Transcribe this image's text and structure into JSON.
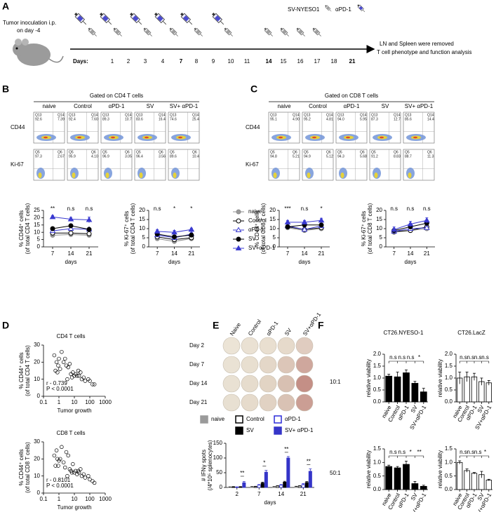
{
  "figure": {
    "panel_labels": [
      "A",
      "B",
      "C",
      "D",
      "E",
      "F"
    ],
    "panel_a": {
      "inoculation": "Tumor inoculation  i.p.",
      "inoculation_day": "on day -4",
      "legend": [
        "SV-NYESO1",
        "αPD-1"
      ],
      "days_label": "Days:",
      "days": [
        1,
        2,
        3,
        4,
        7,
        8,
        9,
        10,
        11,
        14,
        15,
        16,
        17,
        18,
        21
      ],
      "day_colors": [
        "#000",
        "#000",
        "#000",
        "#000",
        "#d4141b",
        "#000",
        "#000",
        "#000",
        "#000",
        "#d4141b",
        "#000",
        "#000",
        "#000",
        "#000",
        "#d4141b"
      ],
      "end_text": [
        "LN and Spleen  were removed",
        "T cell phenotype  and  function analysis"
      ]
    },
    "panel_b": {
      "gate": "Gated on CD4 T cells",
      "groups": [
        "naive",
        "Control",
        "αPD-1",
        "SV",
        "SV+ αPD-1"
      ],
      "rows": [
        "CD44",
        "Ki-67"
      ],
      "quadrants": [
        [
          [
            "Q13",
            "92.6",
            "Q14",
            "7.39"
          ],
          [
            "Q13",
            "92.4",
            "Q14",
            "7.60"
          ],
          [
            "Q13",
            "89.3",
            "Q14",
            "10.7"
          ],
          [
            "Q13",
            "83.6",
            "Q14",
            "16.4"
          ],
          [
            "Q13",
            "74.6",
            "Q14",
            "25.4"
          ]
        ],
        [
          [
            "Q5",
            "97.3",
            "Q6",
            "2.67"
          ],
          [
            "Q5",
            "95.9",
            "Q6",
            "4.10"
          ],
          [
            "Q5",
            "96.9",
            "Q6",
            "3.05"
          ],
          [
            "Q5",
            "96.4",
            "Q6",
            "3.56"
          ],
          [
            "Q5",
            "89.6",
            "Q6",
            "10.4"
          ]
        ]
      ]
    },
    "panel_c": {
      "gate": "Gated on CD8 T cells",
      "groups": [
        "naive",
        "Control",
        "αPD-1",
        "SV",
        "SV+ αPD-1"
      ],
      "rows": [
        "CD44",
        "Ki-67"
      ],
      "quadrants": [
        [
          [
            "Q13",
            "95.1",
            "Q14",
            "4.90"
          ],
          [
            "Q13",
            "95.2",
            "Q14",
            "4.81"
          ],
          [
            "Q13",
            "94.0",
            "Q14",
            "5.95"
          ],
          [
            "Q13",
            "87.3",
            "Q14",
            "12.7"
          ],
          [
            "Q13",
            "85.6",
            "Q14",
            "14.4"
          ]
        ],
        [
          [
            "Q5",
            "94.8",
            "Q6",
            "5.21"
          ],
          [
            "Q5",
            "94.9",
            "Q6",
            "5.12"
          ],
          [
            "Q5",
            "94.3",
            "Q6",
            "5.68"
          ],
          [
            "Q5",
            "91.2",
            "Q6",
            "8.83"
          ],
          [
            "Q5",
            "88.7",
            "Q6",
            "11.3"
          ]
        ]
      ]
    },
    "panel_e": {
      "columns": [
        "Naive",
        "Control",
        "αPD-1",
        "SV",
        "SV+αPD-1"
      ],
      "rows": [
        "Day 2",
        "Day 7",
        "Day 14",
        "Day 21"
      ]
    },
    "panel_f": {
      "ratios": [
        "10:1",
        "50:1"
      ]
    }
  },
  "chart_data": [
    {
      "type": "line",
      "categories": [
        "7",
        "14",
        "21"
      ],
      "xlabel": "days",
      "ylabel": [
        "% CD44⁺ cells",
        "(of total CD4 T cells)"
      ],
      "ylim": [
        0,
        25
      ],
      "yticks": [
        0,
        5,
        10,
        15,
        20,
        25
      ],
      "annotations": [
        "**",
        "n.s",
        "n.s"
      ],
      "series": [
        {
          "name": "naive",
          "color": "#8c8c8c",
          "fill": "#9a9a9a",
          "marker": "circle",
          "values": [
            8,
            8.5,
            8
          ],
          "errors": [
            0.8,
            0.8,
            0.8
          ]
        },
        {
          "name": "Control",
          "color": "#000000",
          "fill": "#ffffff",
          "marker": "circle",
          "values": [
            9.5,
            9.5,
            9
          ],
          "errors": [
            0.8,
            0.9,
            0.8
          ]
        },
        {
          "name": "αPD-1",
          "color": "#3a3ad0",
          "fill": "#ffffff",
          "marker": "triangle",
          "values": [
            11,
            12.5,
            12
          ],
          "errors": [
            1,
            1,
            1
          ]
        },
        {
          "name": "SV",
          "color": "#000000",
          "fill": "#000000",
          "marker": "circle",
          "values": [
            12.5,
            14.5,
            12
          ],
          "errors": [
            1,
            1,
            1
          ]
        },
        {
          "name": "SV+αPD-1",
          "color": "#3a3ad0",
          "fill": "#3a3ad0",
          "marker": "triangle",
          "values": [
            20.5,
            19,
            18.5
          ],
          "errors": [
            1,
            1.2,
            2
          ]
        }
      ]
    },
    {
      "type": "line",
      "categories": [
        "7",
        "14",
        "21"
      ],
      "xlabel": "days",
      "ylabel": [
        "% Ki-67⁺ cells",
        "(of total CD4 T cells)"
      ],
      "ylim": [
        0,
        20
      ],
      "yticks": [
        0,
        5,
        10,
        15,
        20
      ],
      "annotations": [
        "n.s",
        "*",
        "*"
      ],
      "series": [
        {
          "color": "#8c8c8c",
          "fill": "#9a9a9a",
          "marker": "circle",
          "values": [
            4.5,
            3,
            4.5
          ],
          "errors": [
            1,
            1,
            0.8
          ]
        },
        {
          "color": "#000000",
          "fill": "#ffffff",
          "marker": "circle",
          "values": [
            5.5,
            4,
            5
          ],
          "errors": [
            1,
            1,
            0.8
          ]
        },
        {
          "color": "#3a3ad0",
          "fill": "#ffffff",
          "marker": "triangle",
          "values": [
            6.5,
            5,
            7
          ],
          "errors": [
            1,
            1,
            1
          ]
        },
        {
          "color": "#000000",
          "fill": "#000000",
          "marker": "circle",
          "values": [
            7,
            5.5,
            6.5
          ],
          "errors": [
            1,
            1,
            1
          ]
        },
        {
          "color": "#3a3ad0",
          "fill": "#3a3ad0",
          "marker": "triangle",
          "values": [
            8.5,
            8,
            9.5
          ],
          "errors": [
            1,
            1,
            0.8
          ]
        }
      ]
    },
    {
      "type": "line",
      "categories": [
        "7",
        "14",
        "21"
      ],
      "xlabel": "days",
      "ylabel": [
        "% CD44⁺ cells",
        "(of total CD8 T cells)"
      ],
      "ylim": [
        0,
        20
      ],
      "yticks": [
        0,
        5,
        10,
        15,
        20
      ],
      "annotations": [
        "***",
        "n.s",
        "*"
      ],
      "series": [
        {
          "color": "#8c8c8c",
          "fill": "#9a9a9a",
          "marker": "circle",
          "values": [
            10.5,
            9,
            10
          ],
          "errors": [
            0.8,
            0.8,
            0.8
          ]
        },
        {
          "color": "#000000",
          "fill": "#ffffff",
          "marker": "circle",
          "values": [
            11,
            9.5,
            10.5
          ],
          "errors": [
            0.8,
            0.8,
            0.8
          ]
        },
        {
          "color": "#3a3ad0",
          "fill": "#ffffff",
          "marker": "triangle",
          "values": [
            11.5,
            9.5,
            11.5
          ],
          "errors": [
            1,
            0.8,
            1
          ]
        },
        {
          "color": "#000000",
          "fill": "#000000",
          "marker": "circle",
          "values": [
            11,
            12,
            12
          ],
          "errors": [
            1,
            1,
            1
          ]
        },
        {
          "color": "#3a3ad0",
          "fill": "#3a3ad0",
          "marker": "triangle",
          "values": [
            13.5,
            13.5,
            14.5
          ],
          "errors": [
            1,
            1,
            1.2
          ]
        }
      ]
    },
    {
      "type": "line",
      "categories": [
        "7",
        "14",
        "21"
      ],
      "xlabel": "days",
      "ylabel": [
        "% Ki-67⁺ cells",
        "(of total CD8 T cells)"
      ],
      "ylim": [
        0,
        20
      ],
      "yticks": [
        0,
        5,
        10,
        15,
        20
      ],
      "annotations": [
        "n.s",
        "n.s",
        "n.s"
      ],
      "series": [
        {
          "color": "#8c8c8c",
          "fill": "#9a9a9a",
          "marker": "circle",
          "values": [
            8,
            9,
            10
          ],
          "errors": [
            1,
            1,
            1
          ]
        },
        {
          "color": "#000000",
          "fill": "#ffffff",
          "marker": "circle",
          "values": [
            8.5,
            9,
            11
          ],
          "errors": [
            1,
            1,
            1
          ]
        },
        {
          "color": "#3a3ad0",
          "fill": "#ffffff",
          "marker": "triangle",
          "values": [
            8.5,
            10,
            10.5
          ],
          "errors": [
            1,
            1,
            1
          ]
        },
        {
          "color": "#000000",
          "fill": "#000000",
          "marker": "circle",
          "values": [
            9,
            11,
            13
          ],
          "errors": [
            1,
            1,
            1
          ]
        },
        {
          "color": "#3a3ad0",
          "fill": "#3a3ad0",
          "marker": "triangle",
          "values": [
            9.5,
            12.5,
            14.5
          ],
          "errors": [
            1.5,
            1.5,
            1.5
          ]
        }
      ]
    },
    {
      "type": "scatter",
      "title": "CD4  T cells",
      "xlabel": "Tumor growth",
      "ylabel": [
        "% CD44⁺ cells",
        "(of total CD4 T cells)"
      ],
      "xscale": "log",
      "xlim": [
        0.1,
        1000
      ],
      "xticks": [
        0.1,
        1,
        10,
        100,
        1000
      ],
      "ylim": [
        0,
        30
      ],
      "yticks": [
        0,
        10,
        20,
        30
      ],
      "annotations": [
        "r   - 0.739",
        "P   < 0.0001"
      ],
      "x": [
        0.5,
        0.7,
        1,
        0.6,
        0.8,
        1.5,
        2,
        3,
        2.5,
        4,
        5,
        6,
        8,
        10,
        12,
        15,
        20,
        25,
        30,
        40,
        50,
        80,
        100,
        150,
        200,
        0.9,
        1.2,
        3.5,
        7,
        18
      ],
      "y": [
        24,
        20,
        22,
        15,
        14,
        26,
        20,
        18,
        22,
        17,
        19,
        13,
        14,
        12,
        13,
        12,
        12,
        14,
        10,
        11,
        9,
        10,
        9,
        7,
        7,
        18,
        16,
        10,
        11,
        15
      ]
    },
    {
      "type": "scatter",
      "title": "CD8  T cells",
      "xlabel": "Tumor growth",
      "ylabel": [
        "% CD44⁺ cells",
        "(of total CD8 T cells)"
      ],
      "xscale": "log",
      "xlim": [
        0.1,
        1000
      ],
      "xticks": [
        0.1,
        1,
        10,
        100,
        1000
      ],
      "ylim": [
        0,
        30
      ],
      "yticks": [
        0,
        10,
        20,
        30
      ],
      "annotations": [
        "r   - 0.8101",
        "P   < 0.0001"
      ],
      "x": [
        0.5,
        0.7,
        1,
        0.6,
        0.8,
        1.5,
        2,
        3,
        2.5,
        4,
        5,
        6,
        8,
        10,
        12,
        15,
        20,
        25,
        30,
        40,
        50,
        80,
        100,
        150,
        200,
        0.9,
        1.2,
        3.5,
        7,
        18
      ],
      "y": [
        22,
        25,
        19,
        16,
        20,
        27,
        18,
        24,
        15,
        22,
        14,
        13,
        17,
        12,
        13,
        11,
        12,
        14,
        10,
        11,
        9,
        10,
        8,
        7,
        6,
        16,
        20,
        10,
        12,
        13
      ]
    },
    {
      "type": "bar",
      "categories": [
        "2",
        "7",
        "14",
        "21"
      ],
      "xlabel": "days",
      "ylabel": [
        "# IFNγ spots",
        "(/4*10⁵ splenocytes)"
      ],
      "ylim": [
        0,
        150
      ],
      "yticks": [
        0,
        50,
        100,
        150
      ],
      "annotations": [
        "**",
        "*",
        "**",
        "**"
      ],
      "series": [
        {
          "name": "naive",
          "fill": "#9a9a9a",
          "color": "#9a9a9a",
          "values": [
            1,
            2,
            2,
            3
          ],
          "errors": [
            1,
            1,
            1,
            1
          ]
        },
        {
          "name": "Control",
          "fill": "#ffffff",
          "color": "#000000",
          "values": [
            2,
            3,
            5,
            5
          ],
          "errors": [
            1,
            1,
            1,
            1
          ]
        },
        {
          "name": "αPD-1",
          "fill": "#ffffff",
          "color": "#2b2bd8",
          "values": [
            1,
            8,
            8,
            10
          ],
          "errors": [
            1,
            2,
            2,
            3
          ]
        },
        {
          "name": "SV",
          "fill": "#000000",
          "color": "#000000",
          "values": [
            2,
            15,
            18,
            17
          ],
          "errors": [
            1,
            3,
            3,
            3
          ]
        },
        {
          "name": "SV+ αPD-1",
          "fill": "#3535c8",
          "color": "#3535c8",
          "values": [
            16,
            52,
            100,
            55
          ],
          "errors": [
            4,
            6,
            5,
            8
          ]
        }
      ]
    },
    {
      "type": "bar",
      "title": "CT26.NYESO-1",
      "categories": [
        "naive",
        "Control",
        "αPD-1",
        "SV",
        "SV+αPD-1"
      ],
      "ylabel": "relative viability",
      "ylim": [
        0,
        2
      ],
      "yticks": [
        {
          "value": 0,
          "label": "0.0"
        },
        {
          "value": 0.5,
          "label": "0.5"
        },
        {
          "value": 1,
          "label": "1.0"
        },
        {
          "value": 1.5,
          "label": "1.5"
        },
        {
          "value": 2,
          "label": "2.0"
        }
      ],
      "color": "#000000",
      "values": [
        1.08,
        1.05,
        1.22,
        0.78,
        0.42
      ],
      "errors": [
        0.08,
        0.2,
        0.12,
        0.08,
        0.15
      ],
      "annotations": [
        "n.s",
        "n.s",
        "n.s",
        "*"
      ]
    },
    {
      "type": "bar",
      "title": "CT26.LacZ",
      "categories": [
        "naive",
        "Control",
        "αPD-1",
        "SV",
        "SV+αPD-1"
      ],
      "ylabel": "relative viability",
      "ylim": [
        0,
        2
      ],
      "yticks": [
        {
          "value": 0,
          "label": "0.0"
        },
        {
          "value": 0.5,
          "label": "0.5"
        },
        {
          "value": 1,
          "label": "1.0"
        },
        {
          "value": 1.5,
          "label": "1.5"
        },
        {
          "value": 2,
          "label": "2.0"
        }
      ],
      "color": "#ffffff",
      "values": [
        1.0,
        1.05,
        1.05,
        0.85,
        0.8
      ],
      "errors": [
        0.25,
        0.2,
        0.15,
        0.15,
        0.1
      ],
      "annotations": [
        "n.s",
        "n.s",
        "n.s",
        "n.s"
      ]
    },
    {
      "type": "bar",
      "categories": [
        "naive",
        "Control",
        "αPD-1",
        "SV",
        "SV+αPD-1"
      ],
      "ylabel": "relative viability",
      "ylim": [
        0,
        1.5
      ],
      "yticks": [
        {
          "value": 0,
          "label": "0.0"
        },
        {
          "value": 0.5,
          "label": "0.5"
        },
        {
          "value": 1,
          "label": "1.0"
        },
        {
          "value": 1.5,
          "label": "1.5"
        }
      ],
      "color": "#000000",
      "values": [
        0.85,
        0.8,
        0.93,
        0.22,
        0.12
      ],
      "errors": [
        0.05,
        0.05,
        0.12,
        0.08,
        0.04
      ],
      "annotations": [
        "n.s",
        "n.s",
        "*",
        "**"
      ]
    },
    {
      "type": "bar",
      "categories": [
        "naive",
        "Control",
        "αPD-1",
        "SV",
        "SV+αPD-1"
      ],
      "ylabel": "relative viability",
      "ylim": [
        0,
        1.5
      ],
      "yticks": [
        {
          "value": 0,
          "label": "0.0"
        },
        {
          "value": 0.5,
          "label": "0.5"
        },
        {
          "value": 1,
          "label": "1.0"
        },
        {
          "value": 1.5,
          "label": "1.5"
        }
      ],
      "color": "#ffffff",
      "values": [
        1.0,
        0.7,
        0.6,
        0.55,
        0.35
      ],
      "errors": [
        0.06,
        0.06,
        0.03,
        0.12,
        0.03
      ],
      "annotations": [
        "n.s",
        "n.s",
        "n.s",
        "*"
      ]
    }
  ]
}
